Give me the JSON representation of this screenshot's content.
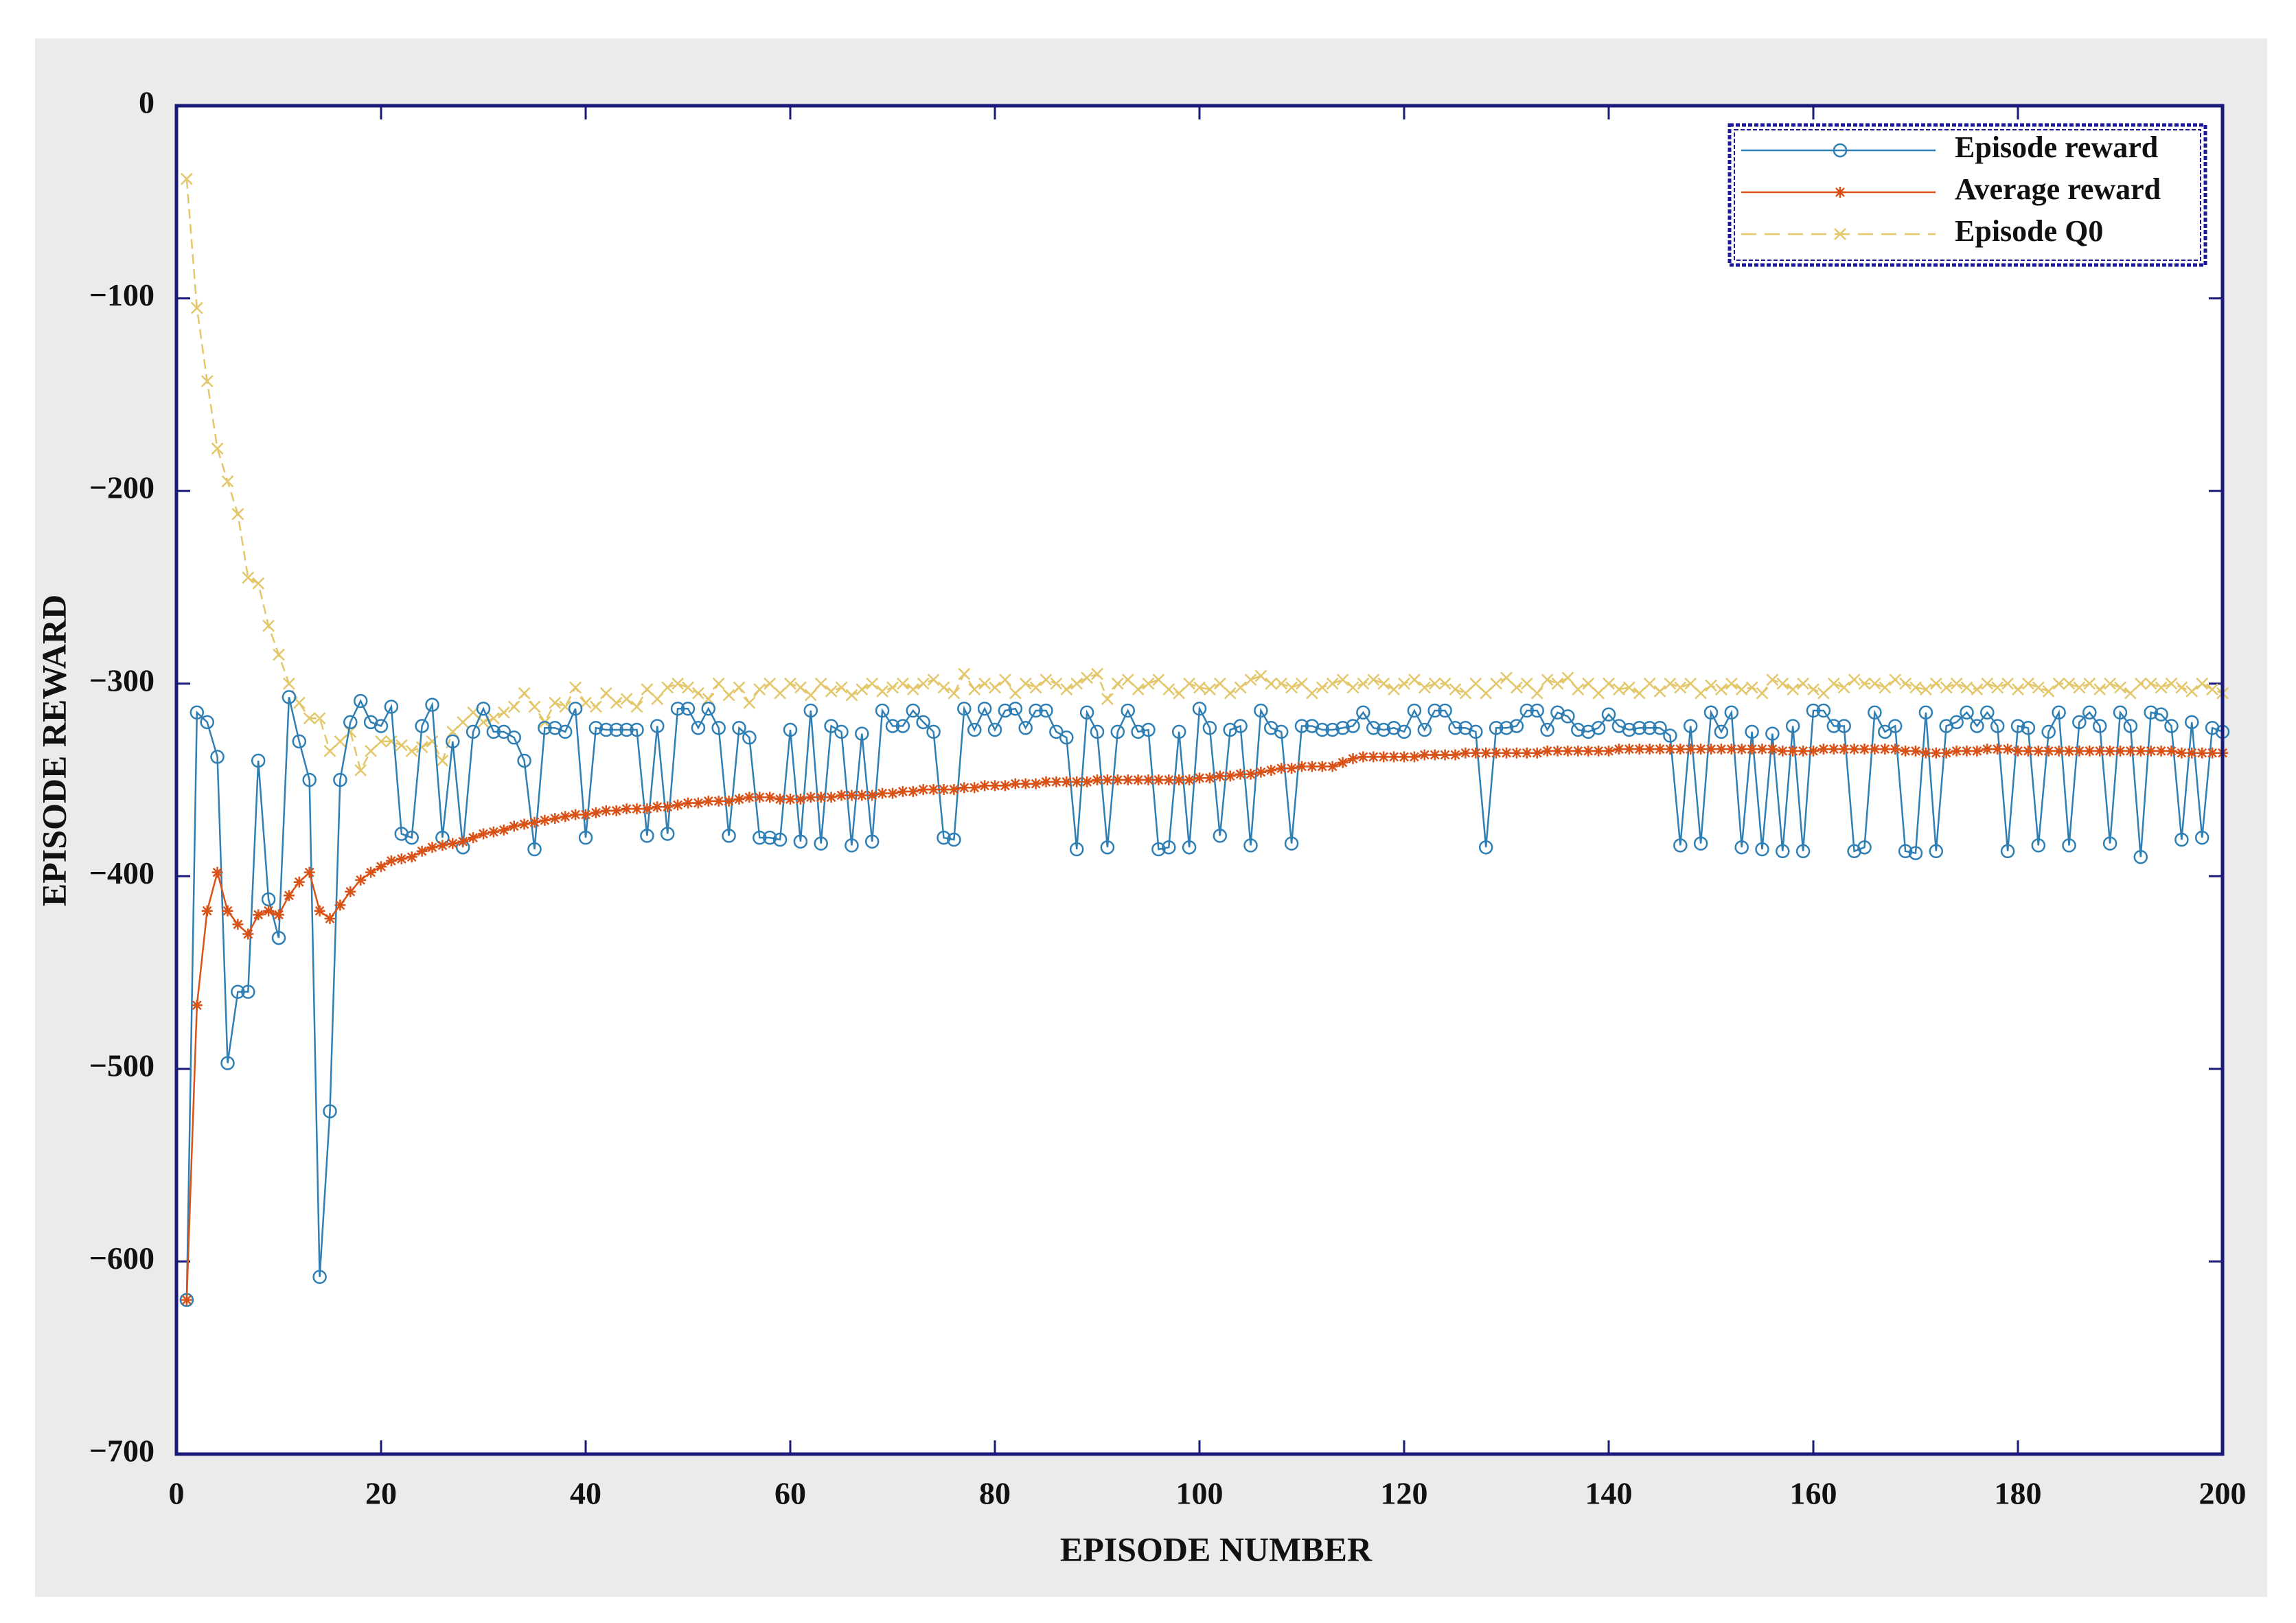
{
  "chart_data": {
    "type": "line",
    "xlabel": "EPISODE NUMBER",
    "ylabel": "EPISODE REWARD",
    "x": [
      1,
      2,
      3,
      4,
      5,
      6,
      7,
      8,
      9,
      10,
      11,
      12,
      13,
      14,
      15,
      16,
      17,
      18,
      19,
      20,
      21,
      22,
      23,
      24,
      25,
      26,
      27,
      28,
      29,
      30,
      31,
      32,
      33,
      34,
      35,
      36,
      37,
      38,
      39,
      40,
      41,
      42,
      43,
      44,
      45,
      46,
      47,
      48,
      49,
      50,
      51,
      52,
      53,
      54,
      55,
      56,
      57,
      58,
      59,
      60,
      61,
      62,
      63,
      64,
      65,
      66,
      67,
      68,
      69,
      70,
      71,
      72,
      73,
      74,
      75,
      76,
      77,
      78,
      79,
      80,
      81,
      82,
      83,
      84,
      85,
      86,
      87,
      88,
      89,
      90,
      91,
      92,
      93,
      94,
      95,
      96,
      97,
      98,
      99,
      100,
      101,
      102,
      103,
      104,
      105,
      106,
      107,
      108,
      109,
      110,
      111,
      112,
      113,
      114,
      115,
      116,
      117,
      118,
      119,
      120,
      121,
      122,
      123,
      124,
      125,
      126,
      127,
      128,
      129,
      130,
      131,
      132,
      133,
      134,
      135,
      136,
      137,
      138,
      139,
      140,
      141,
      142,
      143,
      144,
      145,
      146,
      147,
      148,
      149,
      150,
      151,
      152,
      153,
      154,
      155,
      156,
      157,
      158,
      159,
      160,
      161,
      162,
      163,
      164,
      165,
      166,
      167,
      168,
      169,
      170,
      171,
      172,
      173,
      174,
      175,
      176,
      177,
      178,
      179,
      180,
      181,
      182,
      183,
      184,
      185,
      186,
      187,
      188,
      189,
      190,
      191,
      192,
      193,
      194,
      195,
      196,
      197,
      198,
      199,
      200
    ],
    "series": [
      {
        "name": "Episode reward",
        "color": "#2f7fb5",
        "marker": "o",
        "linestyle": "solid",
        "values": [
          -620,
          -315,
          -320,
          -338,
          -497,
          -460,
          -460,
          -340,
          -412,
          -432,
          -307,
          -330,
          -350,
          -608,
          -522,
          -350,
          -320,
          -309,
          -320,
          -322,
          -312,
          -378,
          -380,
          -322,
          -311,
          -380,
          -330,
          -385,
          -325,
          -313,
          -325,
          -325,
          -328,
          -340,
          -386,
          -323,
          -323,
          -325,
          -313,
          -380,
          -323,
          -324,
          -324,
          -324,
          -324,
          -379,
          -322,
          -378,
          -313,
          -313,
          -323,
          -313,
          -323,
          -379,
          -323,
          -328,
          -380,
          -380,
          -381,
          -324,
          -382,
          -314,
          -383,
          -322,
          -325,
          -384,
          -326,
          -382,
          -314,
          -322,
          -322,
          -314,
          -320,
          -325,
          -380,
          -381,
          -313,
          -324,
          -313,
          -324,
          -314,
          -313,
          -323,
          -314,
          -314,
          -325,
          -328,
          -386,
          -315,
          -325,
          -385,
          -325,
          -314,
          -325,
          -324,
          -386,
          -385,
          -325,
          -385,
          -313,
          -323,
          -379,
          -324,
          -322,
          -384,
          -314,
          -323,
          -325,
          -383,
          -322,
          -322,
          -324,
          -324,
          -323,
          -322,
          -315,
          -323,
          -324,
          -323,
          -325,
          -314,
          -324,
          -314,
          -314,
          -323,
          -323,
          -325,
          -385,
          -323,
          -323,
          -322,
          -314,
          -314,
          -324,
          -315,
          -317,
          -324,
          -325,
          -323,
          -316,
          -322,
          -324,
          -323,
          -323,
          -323,
          -327,
          -384,
          -322,
          -383,
          -315,
          -325,
          -315,
          -385,
          -325,
          -386,
          -326,
          -387,
          -322,
          -387,
          -314,
          -314,
          -322,
          -322,
          -387,
          -385,
          -315,
          -325,
          -322,
          -387,
          -388,
          -315,
          -387,
          -322,
          -320,
          -315,
          -322,
          -315,
          -322,
          -387,
          -322,
          -323,
          -384,
          -325,
          -315,
          -384,
          -320,
          -315,
          -322,
          -383,
          -315,
          -322,
          -390,
          -315,
          -316,
          -322,
          -381,
          -320,
          -380,
          -323,
          -325
        ]
      },
      {
        "name": "Average reward",
        "color": "#d95319",
        "marker": "*",
        "linestyle": "solid",
        "values": [
          -620,
          -467,
          -418,
          -398,
          -418,
          -425,
          -430,
          -420,
          -418,
          -420,
          -410,
          -403,
          -398,
          -418,
          -422,
          -415,
          -408,
          -402,
          -398,
          -395,
          -392,
          -391,
          -390,
          -387,
          -385,
          -384,
          -383,
          -382,
          -380,
          -378,
          -377,
          -376,
          -374,
          -373,
          -372,
          -371,
          -370,
          -369,
          -368,
          -368,
          -367,
          -366,
          -366,
          -365,
          -365,
          -365,
          -364,
          -364,
          -363,
          -362,
          -362,
          -361,
          -361,
          -361,
          -360,
          -359,
          -359,
          -359,
          -360,
          -360,
          -360,
          -359,
          -359,
          -359,
          -358,
          -358,
          -358,
          -358,
          -357,
          -357,
          -356,
          -356,
          -355,
          -355,
          -355,
          -355,
          -354,
          -354,
          -353,
          -353,
          -353,
          -352,
          -352,
          -352,
          -351,
          -351,
          -351,
          -351,
          -351,
          -350,
          -350,
          -350,
          -350,
          -350,
          -350,
          -350,
          -350,
          -350,
          -350,
          -349,
          -349,
          -348,
          -348,
          -347,
          -347,
          -346,
          -345,
          -344,
          -344,
          -343,
          -343,
          -343,
          -343,
          -341,
          -339,
          -338,
          -338,
          -338,
          -338,
          -338,
          -338,
          -337,
          -337,
          -337,
          -337,
          -336,
          -336,
          -336,
          -336,
          -336,
          -336,
          -336,
          -336,
          -335,
          -335,
          -335,
          -335,
          -335,
          -335,
          -335,
          -334,
          -334,
          -334,
          -334,
          -334,
          -334,
          -334,
          -334,
          -334,
          -334,
          -334,
          -334,
          -334,
          -334,
          -334,
          -334,
          -335,
          -335,
          -335,
          -335,
          -334,
          -334,
          -334,
          -334,
          -334,
          -334,
          -334,
          -334,
          -335,
          -335,
          -336,
          -336,
          -336,
          -335,
          -335,
          -335,
          -334,
          -334,
          -334,
          -335,
          -335,
          -335,
          -335,
          -335,
          -335,
          -335,
          -335,
          -335,
          -335,
          -335,
          -335,
          -335,
          -335,
          -335,
          -335,
          -336,
          -336,
          -336,
          -336,
          -336
        ]
      },
      {
        "name": "Episode Q0",
        "color": "#e3c76a",
        "marker": "x",
        "linestyle": "dashed",
        "values": [
          -38,
          -105,
          -143,
          -178,
          -195,
          -212,
          -245,
          -248,
          -270,
          -285,
          -300,
          -310,
          -318,
          -318,
          -335,
          -330,
          -325,
          -345,
          -335,
          -330,
          -330,
          -332,
          -335,
          -333,
          -330,
          -340,
          -325,
          -320,
          -315,
          -320,
          -318,
          -315,
          -312,
          -305,
          -312,
          -320,
          -310,
          -312,
          -302,
          -310,
          -312,
          -305,
          -310,
          -308,
          -312,
          -303,
          -308,
          -302,
          -300,
          -302,
          -305,
          -308,
          -300,
          -306,
          -302,
          -310,
          -303,
          -300,
          -305,
          -300,
          -302,
          -306,
          -300,
          -304,
          -302,
          -306,
          -303,
          -300,
          -304,
          -302,
          -300,
          -303,
          -300,
          -298,
          -302,
          -305,
          -295,
          -303,
          -300,
          -302,
          -298,
          -305,
          -300,
          -302,
          -298,
          -300,
          -303,
          -300,
          -297,
          -295,
          -308,
          -300,
          -298,
          -303,
          -300,
          -298,
          -303,
          -305,
          -300,
          -302,
          -303,
          -300,
          -305,
          -302,
          -298,
          -296,
          -300,
          -300,
          -302,
          -300,
          -305,
          -302,
          -300,
          -298,
          -302,
          -300,
          -298,
          -300,
          -303,
          -300,
          -298,
          -302,
          -300,
          -300,
          -303,
          -305,
          -300,
          -305,
          -300,
          -297,
          -302,
          -300,
          -305,
          -298,
          -300,
          -297,
          -303,
          -300,
          -305,
          -300,
          -303,
          -302,
          -305,
          -300,
          -304,
          -300,
          -302,
          -300,
          -305,
          -301,
          -303,
          -300,
          -303,
          -302,
          -305,
          -298,
          -300,
          -303,
          -300,
          -303,
          -305,
          -300,
          -302,
          -298,
          -300,
          -300,
          -302,
          -298,
          -300,
          -302,
          -303,
          -300,
          -302,
          -300,
          -302,
          -303,
          -300,
          -302,
          -300,
          -303,
          -300,
          -302,
          -304,
          -300,
          -300,
          -302,
          -300,
          -303,
          -300,
          -302,
          -305,
          -300,
          -300,
          -302,
          -300,
          -302,
          -304,
          -300,
          -303,
          -305
        ]
      }
    ],
    "xlim": [
      0,
      200
    ],
    "xticks": [
      0,
      20,
      40,
      60,
      80,
      100,
      120,
      140,
      160,
      180,
      200
    ],
    "ylim": [
      -700,
      0
    ],
    "yticks": [
      {
        "value": -700,
        "label": "−700"
      },
      {
        "value": -600,
        "label": "−600"
      },
      {
        "value": -500,
        "label": "−500"
      },
      {
        "value": -400,
        "label": "−400"
      },
      {
        "value": -300,
        "label": "−300"
      },
      {
        "value": -200,
        "label": "−200"
      },
      {
        "value": -100,
        "label": "−100"
      },
      0
    ],
    "grid": false,
    "legend": "upper right"
  }
}
